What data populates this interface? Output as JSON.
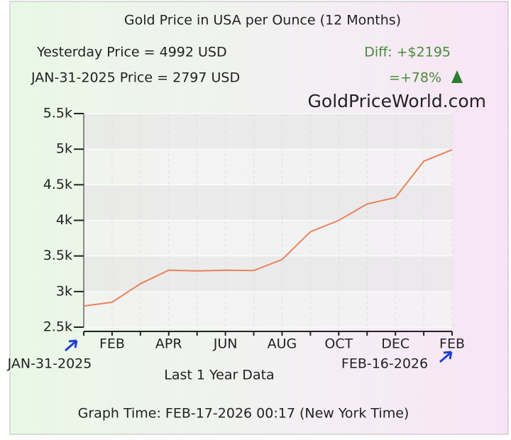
{
  "chart_data": {
    "type": "line",
    "title": "Gold Price in USA per Ounce (12 Months)",
    "annotations": {
      "yesterday": "Yesterday Price = 4992 USD",
      "diff": "Diff: +$2195",
      "start_price": "JAN-31-2025 Price = 2797 USD",
      "percent": "=+78%",
      "site": "GoldPriceWorld.com",
      "start_date": "JAN-31-2025",
      "end_date": "FEB-16-2026",
      "period": "Last 1 Year Data",
      "graph_time": "Graph Time: FEB-17-2026 00:17 (New York Time)"
    },
    "categories": [
      null,
      "FEB",
      null,
      "APR",
      null,
      "JUN",
      null,
      "AUG",
      null,
      "OCT",
      null,
      "DEC",
      null,
      "FEB"
    ],
    "values": [
      2797,
      2850,
      3110,
      3300,
      3290,
      3300,
      3295,
      3450,
      3840,
      4000,
      4230,
      4320,
      4830,
      4992
    ],
    "color": "#e8825c",
    "ylim": [
      2500,
      5500
    ],
    "yticks": [
      {
        "value": 2500,
        "label": "2.5k"
      },
      {
        "value": 3000,
        "label": "3k"
      },
      {
        "value": 3500,
        "label": "3.5k"
      },
      {
        "value": 4000,
        "label": "4k"
      },
      {
        "value": 4500,
        "label": "4.5k"
      },
      {
        "value": 5000,
        "label": "5k"
      },
      {
        "value": 5500,
        "label": "5.5k"
      }
    ],
    "grid": true
  }
}
